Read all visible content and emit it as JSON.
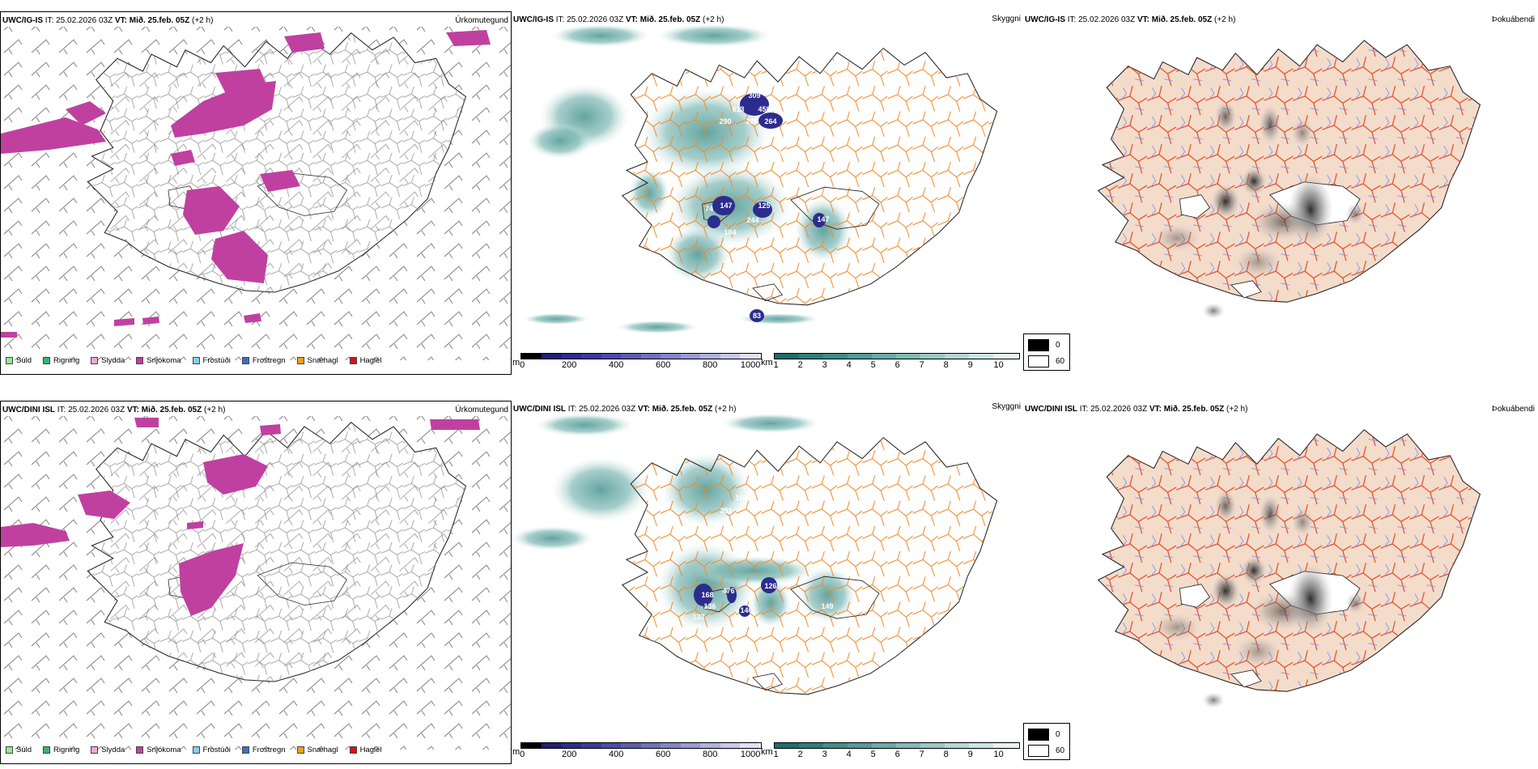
{
  "rows": [
    {
      "model": "UWC/IG-IS",
      "panels": {
        "precip": {
          "title": "Úrkomutegund"
        },
        "vis": {
          "title": "Skyggni",
          "labels": [
            "309",
            "613",
            "458",
            "290",
            "286",
            "264",
            "218",
            "147",
            "125",
            "74",
            "244",
            "184",
            "147",
            "83"
          ]
        },
        "fog": {
          "title": "Þokuábendi"
        }
      }
    },
    {
      "model": "UWC/DINI ISL",
      "panels": {
        "precip": {
          "title": "Úrkomutegund"
        },
        "vis": {
          "title": "Skyggni",
          "labels": [
            "169",
            "351",
            "476",
            "126",
            "168",
            "136",
            "132",
            "90",
            "146",
            "149",
            "154"
          ]
        },
        "fog": {
          "title": "Þokuábendi"
        }
      }
    }
  ],
  "header": {
    "it_label": "IT:",
    "it_value": "25.02.2026 03Z",
    "vt_label": "VT:",
    "vt_value": "Mið. 25.feb. 05Z",
    "offset": "(+2 h)"
  },
  "precip_legend": [
    {
      "label": "Súld",
      "color": "#90ee90"
    },
    {
      "label": "Rigning",
      "color": "#3cb371"
    },
    {
      "label": "Slydda",
      "color": "#f0a8d8"
    },
    {
      "label": "Snjókoma",
      "color": "#c040a0"
    },
    {
      "label": "Frostúði",
      "color": "#87cefa"
    },
    {
      "label": "Frostregn",
      "color": "#3a70c8"
    },
    {
      "label": "Snæhagl",
      "color": "#f0a020"
    },
    {
      "label": "Haglél",
      "color": "#e01010"
    }
  ],
  "cloudbase_bar": {
    "unit": "m",
    "ticks": [
      "0",
      "200",
      "400",
      "600",
      "800",
      "1000"
    ],
    "colors": [
      "#000000",
      "#201e78",
      "#2c2c8c",
      "#3a3a9c",
      "#4a4aaa",
      "#5c5cb4",
      "#7070c0",
      "#8484ca",
      "#9a9ad6",
      "#b0b0e0",
      "#c8c8ea",
      "#e0e0f4"
    ]
  },
  "visibility_bar": {
    "unit": "km",
    "ticks": [
      "1",
      "2",
      "3",
      "4",
      "5",
      "6",
      "7",
      "8",
      "9",
      "10"
    ],
    "colors": [
      "#1e6e6a",
      "#2d7f7a",
      "#3e8e89",
      "#529d98",
      "#68aca7",
      "#80bbb6",
      "#98c9c5",
      "#b2d8d4",
      "#cce6e3",
      "#e6f3f1"
    ]
  },
  "fog_legend": [
    {
      "label": "0",
      "color": "#000000"
    },
    {
      "label": "60",
      "color": "#ffffff"
    }
  ]
}
